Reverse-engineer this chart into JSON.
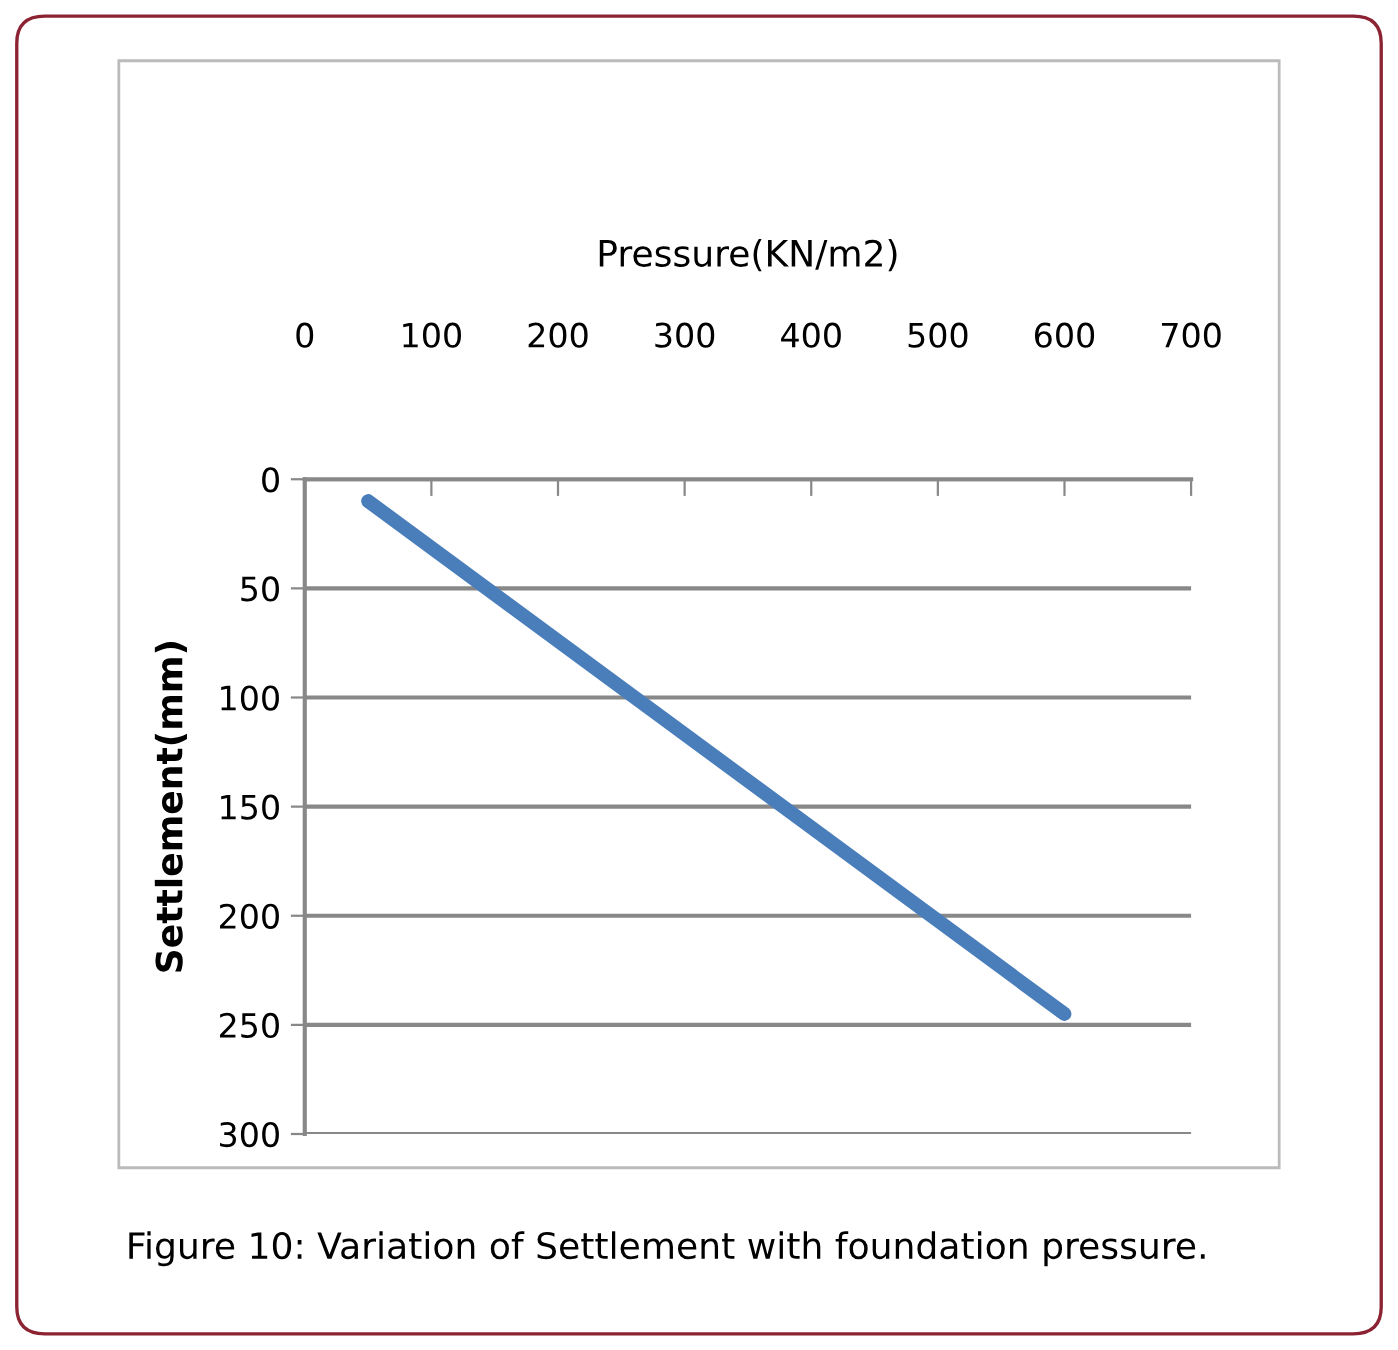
{
  "chart_data": {
    "type": "line",
    "xlabel": "Pressure(KN/m2)",
    "ylabel": "Settlement(mm)",
    "x": [
      50,
      600
    ],
    "series": [
      {
        "color": "#4a7ebb",
        "values": [
          10,
          245
        ]
      }
    ],
    "xlim": [
      0,
      700
    ],
    "xticks": [
      0,
      100,
      200,
      300,
      400,
      500,
      600,
      700
    ],
    "ylim": [
      300,
      0
    ],
    "yticks": [
      0,
      50,
      100,
      150,
      200,
      250,
      300
    ],
    "grid": "y",
    "marker": "none",
    "line_style": "solid",
    "annotations": [
      "Figure 10: Variation of Settlement with foundation pressure."
    ]
  }
}
